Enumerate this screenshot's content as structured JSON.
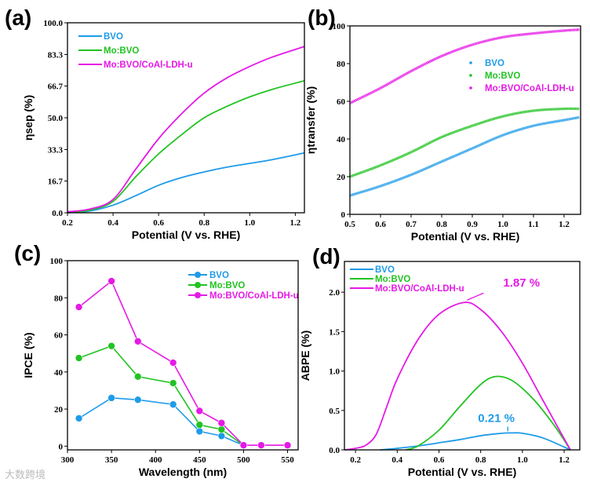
{
  "colors": {
    "BVO": "#1e9be8",
    "Mo:BVO": "#22c322",
    "Mo:BVO/CoAl-LDH-u": "#e619e6"
  },
  "watermark": "大数跨境",
  "chart_data": [
    {
      "panel": "(a)",
      "type": "line",
      "xlabel": "Potential (V vs. RHE)",
      "ylabel": "ηsep (%)",
      "xlim": [
        0.2,
        1.24
      ],
      "ylim": [
        0,
        100
      ],
      "xticks": [
        0.2,
        0.4,
        0.6,
        0.8,
        1.0,
        1.2
      ],
      "xtick_labels": [
        "0.2",
        "0.4",
        "0.6",
        "0.8",
        "1.0",
        "1.2"
      ],
      "yticks": [
        0,
        16.7,
        33.3,
        50,
        66.7,
        83.3,
        100
      ],
      "ytick_labels": [
        "0.0",
        "16.7",
        "33.3",
        "50.0",
        "66.7",
        "83.3",
        "100.0"
      ],
      "legend": "top-left",
      "series": [
        {
          "name": "BVO",
          "x": [
            0.2,
            0.3,
            0.4,
            0.5,
            0.6,
            0.7,
            0.8,
            0.9,
            1.0,
            1.1,
            1.24
          ],
          "y": [
            0,
            1,
            4,
            9,
            14.5,
            18.5,
            21.5,
            24,
            26,
            28,
            31.5
          ]
        },
        {
          "name": "Mo:BVO",
          "x": [
            0.2,
            0.3,
            0.4,
            0.5,
            0.6,
            0.7,
            0.8,
            0.9,
            1.0,
            1.1,
            1.24
          ],
          "y": [
            0,
            1.5,
            6,
            19,
            31,
            41,
            50,
            56,
            61,
            65,
            69.5
          ]
        },
        {
          "name": "Mo:BVO/CoAl-LDH-u",
          "x": [
            0.2,
            0.3,
            0.4,
            0.5,
            0.6,
            0.7,
            0.8,
            0.9,
            1.0,
            1.1,
            1.24
          ],
          "y": [
            0.5,
            2,
            7,
            23,
            39,
            52,
            63,
            71,
            77,
            82,
            87.5
          ]
        }
      ]
    },
    {
      "panel": "(b)",
      "type": "scatter",
      "xlabel": "Potential (V vs. RHE)",
      "ylabel": "ηtransfer (%)",
      "xlim": [
        0.5,
        1.254
      ],
      "ylim": [
        0,
        100
      ],
      "xticks": [
        0.5,
        0.6,
        0.7,
        0.8,
        0.9,
        1.0,
        1.1,
        1.2
      ],
      "xtick_labels": [
        "0.5",
        "0.6",
        "0.7",
        "0.8",
        "0.9",
        "1.0",
        "1.1",
        "1.2"
      ],
      "yticks": [
        0,
        20,
        40,
        60,
        80,
        100
      ],
      "ytick_labels": [
        "0",
        "20",
        "40",
        "60",
        "80",
        "100"
      ],
      "legend": "center-right",
      "series": [
        {
          "name": "BVO",
          "x": [
            0.5,
            0.6,
            0.7,
            0.8,
            0.9,
            1.0,
            1.1,
            1.2,
            1.25
          ],
          "y": [
            10,
            15,
            21,
            28,
            35,
            42,
            47,
            50,
            51.5
          ]
        },
        {
          "name": "Mo:BVO",
          "x": [
            0.5,
            0.6,
            0.7,
            0.8,
            0.9,
            1.0,
            1.1,
            1.2,
            1.25
          ],
          "y": [
            20,
            26,
            33,
            41,
            47,
            52,
            55,
            56,
            56
          ]
        },
        {
          "name": "Mo:BVO/CoAl-LDH-u",
          "x": [
            0.5,
            0.6,
            0.7,
            0.8,
            0.9,
            1.0,
            1.1,
            1.2,
            1.25
          ],
          "y": [
            59,
            67,
            76,
            84,
            90,
            94,
            96,
            97.5,
            98
          ]
        }
      ]
    },
    {
      "panel": "(c)",
      "type": "line",
      "xlabel": "Wavelength (nm)",
      "ylabel": "IPCE (%)",
      "xlim": [
        300,
        562
      ],
      "ylim": [
        -2,
        100
      ],
      "xticks": [
        300,
        350,
        400,
        450,
        500,
        550
      ],
      "xtick_labels": [
        "300",
        "350",
        "400",
        "450",
        "500",
        "550"
      ],
      "yticks": [
        0,
        20,
        40,
        60,
        80,
        100
      ],
      "ytick_labels": [
        "0",
        "20",
        "40",
        "60",
        "80",
        "100"
      ],
      "legend": "top-right",
      "markers": true,
      "series": [
        {
          "name": "BVO",
          "x": [
            313,
            350,
            380,
            420,
            450,
            475,
            500
          ],
          "y": [
            15,
            26,
            25,
            22.5,
            8,
            5.5,
            0.5
          ]
        },
        {
          "name": "Mo:BVO",
          "x": [
            313,
            350,
            380,
            420,
            450,
            475,
            500
          ],
          "y": [
            47.5,
            54,
            37.5,
            34,
            11.5,
            9,
            0.5
          ]
        },
        {
          "name": "Mo:BVO/CoAl-LDH-u",
          "x": [
            313,
            350,
            380,
            420,
            450,
            475,
            500,
            520,
            550
          ],
          "y": [
            75,
            89,
            56.5,
            45,
            19,
            12.5,
            0.5,
            0.5,
            0.5
          ]
        }
      ]
    },
    {
      "panel": "(d)",
      "type": "line",
      "xlabel": "Potential (V vs. RHE)",
      "ylabel": "ABPE (%)",
      "xlim": [
        0.147,
        1.275
      ],
      "ylim": [
        0,
        2.39
      ],
      "xticks": [
        0.2,
        0.4,
        0.6,
        0.8,
        1.0,
        1.2
      ],
      "xtick_labels": [
        "0.2",
        "0.4",
        "0.6",
        "0.8",
        "1.0",
        "1.2"
      ],
      "yticks": [
        0,
        0.5,
        1.0,
        1.5,
        2.0
      ],
      "ytick_labels": [
        "0.0",
        "0.5",
        "1.0",
        "1.5",
        "2.0"
      ],
      "legend": "top-left",
      "annotations": [
        {
          "text": "1.87 %",
          "series": "Mo:BVO/CoAl-LDH-u",
          "x": 0.72,
          "y": 1.87
        },
        {
          "text": "0.21 %",
          "series": "BVO",
          "x": 0.93,
          "y": 0.215
        }
      ],
      "series": [
        {
          "name": "BVO",
          "x": [
            0.32,
            0.4,
            0.5,
            0.6,
            0.7,
            0.8,
            0.9,
            0.95,
            1.0,
            1.1,
            1.23
          ],
          "y": [
            0,
            0.02,
            0.05,
            0.09,
            0.13,
            0.18,
            0.21,
            0.215,
            0.21,
            0.15,
            0
          ]
        },
        {
          "name": "Mo:BVO",
          "x": [
            0.44,
            0.5,
            0.6,
            0.7,
            0.8,
            0.87,
            0.95,
            1.05,
            1.15,
            1.23
          ],
          "y": [
            0,
            0.05,
            0.25,
            0.55,
            0.83,
            0.93,
            0.88,
            0.65,
            0.32,
            0
          ]
        },
        {
          "name": "Mo:BVO/CoAl-LDH-u",
          "x": [
            0.15,
            0.2,
            0.25,
            0.3,
            0.35,
            0.4,
            0.5,
            0.6,
            0.72,
            0.8,
            0.9,
            1.0,
            1.1,
            1.23
          ],
          "y": [
            0,
            0.02,
            0.06,
            0.2,
            0.55,
            0.9,
            1.4,
            1.72,
            1.87,
            1.78,
            1.5,
            1.1,
            0.62,
            0
          ]
        }
      ]
    }
  ]
}
